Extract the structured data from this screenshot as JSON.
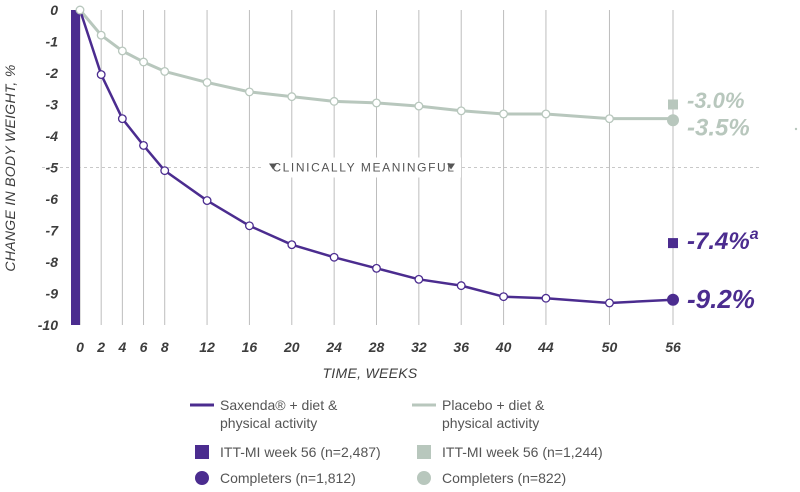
{
  "chart_data": {
    "type": "line",
    "xlabel": "TIME, WEEKS",
    "ylabel": "CHANGE IN BODY WEIGHT, %",
    "ylim": [
      -10,
      0
    ],
    "yticks": [
      0,
      -1,
      -2,
      -3,
      -4,
      -5,
      -6,
      -7,
      -8,
      -9,
      -10
    ],
    "xticks": [
      0,
      2,
      4,
      6,
      8,
      12,
      16,
      20,
      24,
      28,
      32,
      36,
      40,
      44,
      50,
      56
    ],
    "reference_line": {
      "y": -5,
      "label": "CLINICALLY MEANINGFUL"
    },
    "series": [
      {
        "name": "Saxenda® + diet & physical activity",
        "color": "#4b2c8f",
        "x": [
          0,
          2,
          4,
          6,
          8,
          12,
          16,
          20,
          24,
          28,
          32,
          36,
          40,
          44,
          50,
          56
        ],
        "values": [
          0,
          -2.05,
          -3.45,
          -4.3,
          -5.1,
          -6.05,
          -6.85,
          -7.45,
          -7.85,
          -8.2,
          -8.55,
          -8.75,
          -9.1,
          -9.15,
          -9.3,
          -9.2
        ]
      },
      {
        "name": "Placebo + diet & physical activity",
        "color": "#b8c7bd",
        "x": [
          0,
          2,
          4,
          6,
          8,
          12,
          16,
          20,
          24,
          28,
          32,
          36,
          40,
          44,
          50,
          56
        ],
        "values": [
          0,
          -0.8,
          -1.3,
          -1.65,
          -1.95,
          -2.3,
          -2.6,
          -2.75,
          -2.9,
          -2.95,
          -3.05,
          -3.2,
          -3.3,
          -3.3,
          -3.45,
          -3.45
        ]
      }
    ],
    "endpoints": [
      {
        "series": "Placebo",
        "marker": "square",
        "value": -3.0,
        "label": "-3.0%",
        "color": "#b8c7bd"
      },
      {
        "series": "Placebo",
        "marker": "circle",
        "value": -3.5,
        "label": "-3.5%",
        "color": "#b8c7bd"
      },
      {
        "series": "Saxenda",
        "marker": "square",
        "value": -7.4,
        "label": "-7.4%",
        "superscript": "a",
        "color": "#4b2c8f"
      },
      {
        "series": "Saxenda",
        "marker": "circle",
        "value": -9.2,
        "label": "-9.2%",
        "color": "#4b2c8f"
      }
    ],
    "legend": [
      {
        "kind": "line",
        "color": "#4b2c8f",
        "line1": "Saxenda® + diet &",
        "line2": "physical activity"
      },
      {
        "kind": "line",
        "color": "#b8c7bd",
        "line1": "Placebo + diet &",
        "line2": "physical activity"
      },
      {
        "kind": "square",
        "color": "#4b2c8f",
        "line1": "ITT-MI week 56 (n=2,487)"
      },
      {
        "kind": "square",
        "color": "#b8c7bd",
        "line1": "ITT-MI week 56 (n=1,244)"
      },
      {
        "kind": "circle",
        "color": "#4b2c8f",
        "line1": "Completers (n=1,812)"
      },
      {
        "kind": "circle",
        "color": "#b8c7bd",
        "line1": "Completers (n=822)"
      }
    ]
  }
}
